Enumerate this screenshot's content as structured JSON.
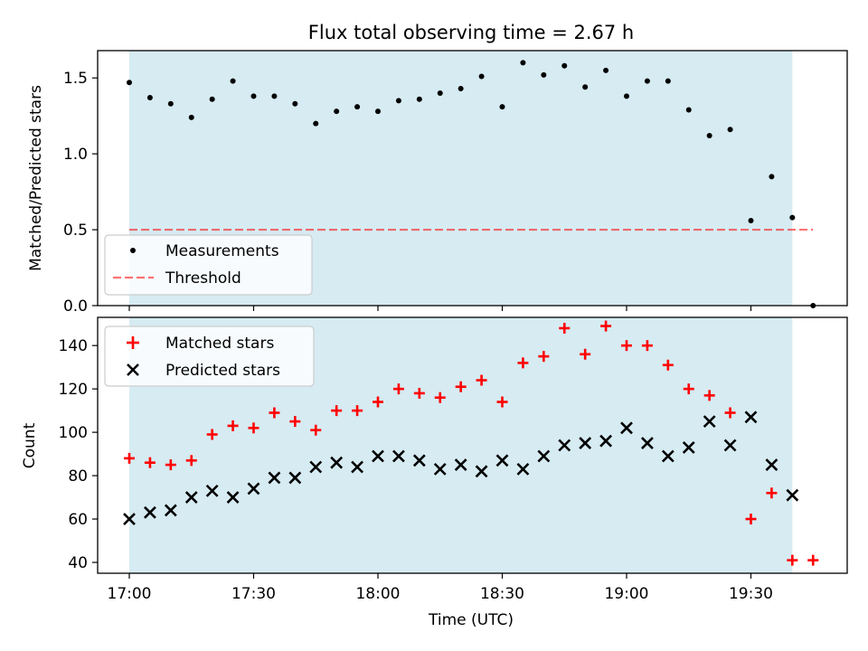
{
  "title": "Flux total observing time = 2.67 h",
  "colors": {
    "observing_span": "#add8e6",
    "measurements": "#000000",
    "threshold": "#ff0000",
    "matched": "#ff0000",
    "predicted": "#000000"
  },
  "chart_data": [
    {
      "type": "scatter",
      "panel": "top",
      "ylabel": "Matched/Predicted stars",
      "ylim": [
        0,
        1.68
      ],
      "yticks": [
        "0.0",
        "0.5",
        "1.0",
        "1.5"
      ],
      "x_axis_unit": "time_of_day",
      "shaded_span": [
        "17:00",
        "19:40"
      ],
      "legend": {
        "position": "lower-left",
        "entries": [
          "Measurements",
          "Threshold"
        ]
      },
      "series": [
        {
          "name": "Measurements",
          "marker": "dot",
          "points": [
            [
              "17:00",
              1.47
            ],
            [
              "17:05",
              1.37
            ],
            [
              "17:10",
              1.33
            ],
            [
              "17:15",
              1.24
            ],
            [
              "17:20",
              1.36
            ],
            [
              "17:25",
              1.48
            ],
            [
              "17:30",
              1.38
            ],
            [
              "17:35",
              1.38
            ],
            [
              "17:40",
              1.33
            ],
            [
              "17:45",
              1.2
            ],
            [
              "17:50",
              1.28
            ],
            [
              "17:55",
              1.31
            ],
            [
              "18:00",
              1.28
            ],
            [
              "18:05",
              1.35
            ],
            [
              "18:10",
              1.36
            ],
            [
              "18:15",
              1.4
            ],
            [
              "18:20",
              1.43
            ],
            [
              "18:25",
              1.51
            ],
            [
              "18:30",
              1.31
            ],
            [
              "18:35",
              1.6
            ],
            [
              "18:40",
              1.52
            ],
            [
              "18:45",
              1.58
            ],
            [
              "18:50",
              1.44
            ],
            [
              "18:55",
              1.55
            ],
            [
              "19:00",
              1.38
            ],
            [
              "19:05",
              1.48
            ],
            [
              "19:10",
              1.48
            ],
            [
              "19:15",
              1.29
            ],
            [
              "19:20",
              1.12
            ],
            [
              "19:25",
              1.16
            ],
            [
              "19:30",
              0.56
            ],
            [
              "19:35",
              0.85
            ],
            [
              "19:40",
              0.58
            ],
            [
              "19:45",
              0.0
            ]
          ]
        },
        {
          "name": "Threshold",
          "style": "dashed-line",
          "value": 0.5,
          "x_range": [
            "17:00",
            "19:45"
          ]
        }
      ]
    },
    {
      "type": "scatter",
      "panel": "bottom",
      "xlabel": "Time (UTC)",
      "ylabel": "Count",
      "ylim": [
        35,
        153
      ],
      "yticks": [
        "40",
        "60",
        "80",
        "100",
        "120",
        "140"
      ],
      "xticks": [
        "17:00",
        "17:30",
        "18:00",
        "18:30",
        "19:00",
        "19:30"
      ],
      "shaded_span": [
        "17:00",
        "19:40"
      ],
      "legend": {
        "position": "top-left",
        "entries": [
          "Matched stars",
          "Predicted stars"
        ]
      },
      "series": [
        {
          "name": "Matched stars",
          "marker": "plus",
          "points": [
            [
              "17:00",
              88
            ],
            [
              "17:05",
              86
            ],
            [
              "17:10",
              85
            ],
            [
              "17:15",
              87
            ],
            [
              "17:20",
              99
            ],
            [
              "17:25",
              103
            ],
            [
              "17:30",
              102
            ],
            [
              "17:35",
              109
            ],
            [
              "17:40",
              105
            ],
            [
              "17:45",
              101
            ],
            [
              "17:50",
              110
            ],
            [
              "17:55",
              110
            ],
            [
              "18:00",
              114
            ],
            [
              "18:05",
              120
            ],
            [
              "18:10",
              118
            ],
            [
              "18:15",
              116
            ],
            [
              "18:20",
              121
            ],
            [
              "18:25",
              124
            ],
            [
              "18:30",
              114
            ],
            [
              "18:35",
              132
            ],
            [
              "18:40",
              135
            ],
            [
              "18:45",
              148
            ],
            [
              "18:50",
              136
            ],
            [
              "18:55",
              149
            ],
            [
              "19:00",
              140
            ],
            [
              "19:05",
              140
            ],
            [
              "19:10",
              131
            ],
            [
              "19:15",
              120
            ],
            [
              "19:20",
              117
            ],
            [
              "19:25",
              109
            ],
            [
              "19:30",
              60
            ],
            [
              "19:35",
              72
            ],
            [
              "19:40",
              41
            ],
            [
              "19:45",
              41
            ]
          ]
        },
        {
          "name": "Predicted stars",
          "marker": "x",
          "points": [
            [
              "17:00",
              60
            ],
            [
              "17:05",
              63
            ],
            [
              "17:10",
              64
            ],
            [
              "17:15",
              70
            ],
            [
              "17:20",
              73
            ],
            [
              "17:25",
              70
            ],
            [
              "17:30",
              74
            ],
            [
              "17:35",
              79
            ],
            [
              "17:40",
              79
            ],
            [
              "17:45",
              84
            ],
            [
              "17:50",
              86
            ],
            [
              "17:55",
              84
            ],
            [
              "18:00",
              89
            ],
            [
              "18:05",
              89
            ],
            [
              "18:10",
              87
            ],
            [
              "18:15",
              83
            ],
            [
              "18:20",
              85
            ],
            [
              "18:25",
              82
            ],
            [
              "18:30",
              87
            ],
            [
              "18:35",
              83
            ],
            [
              "18:40",
              89
            ],
            [
              "18:45",
              94
            ],
            [
              "18:50",
              95
            ],
            [
              "18:55",
              96
            ],
            [
              "19:00",
              102
            ],
            [
              "19:05",
              95
            ],
            [
              "19:10",
              89
            ],
            [
              "19:15",
              93
            ],
            [
              "19:20",
              105
            ],
            [
              "19:25",
              94
            ],
            [
              "19:30",
              107
            ],
            [
              "19:35",
              85
            ],
            [
              "19:40",
              71
            ]
          ]
        }
      ]
    }
  ]
}
